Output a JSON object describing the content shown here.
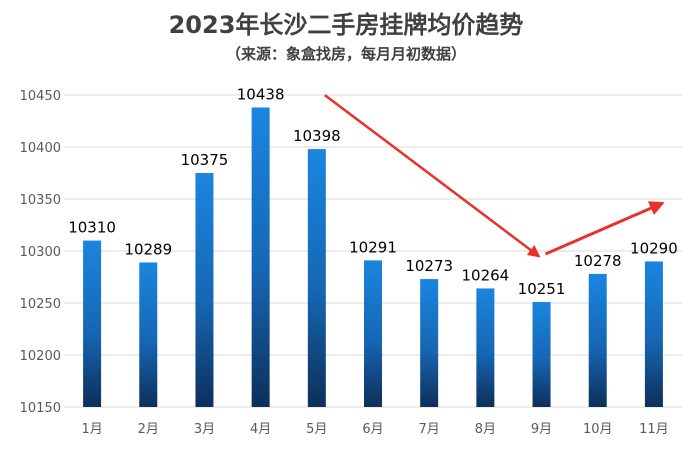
{
  "chart_data": {
    "type": "bar",
    "title": "2023年长沙二手房挂牌均价趋势",
    "subtitle": "（来源：象盒找房，每月月初数据）",
    "categories": [
      "1月",
      "2月",
      "3月",
      "4月",
      "5月",
      "6月",
      "7月",
      "8月",
      "9月",
      "10月",
      "11月"
    ],
    "values": [
      10310,
      10289,
      10375,
      10438,
      10398,
      10291,
      10273,
      10264,
      10251,
      10278,
      10290
    ],
    "xlabel": "",
    "ylabel": "",
    "ylim": [
      10150,
      10450
    ],
    "yticks": [
      10150,
      10200,
      10250,
      10300,
      10350,
      10400,
      10450
    ],
    "grid": true,
    "data_labels": true,
    "annotations": [
      {
        "type": "arrow",
        "from": "5月",
        "to": "9月",
        "color": "#e8312a"
      },
      {
        "type": "arrow",
        "from": "9月",
        "to": "11月",
        "color": "#e8312a"
      }
    ],
    "colors": {
      "bar_top": "#1a86df",
      "bar_bottom": "#0d2f5a",
      "grid": "#d9d9d9",
      "axis_text": "#595959",
      "title": "#404040",
      "arrow": "#e8312a"
    }
  }
}
